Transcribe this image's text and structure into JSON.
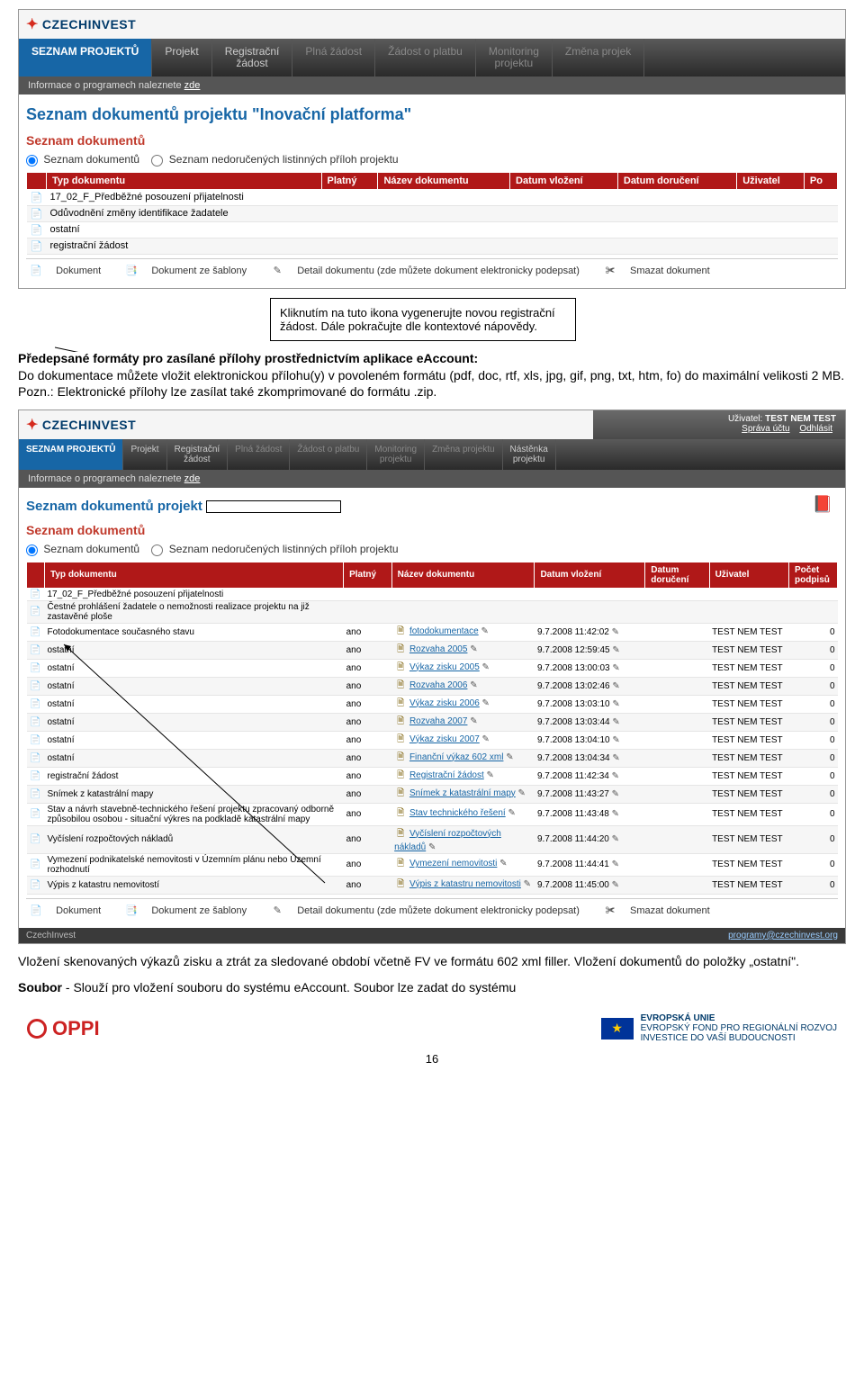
{
  "logo": "CZECHINVEST",
  "nav1": {
    "items": [
      "SEZNAM PROJEKTŮ",
      "Projekt",
      "Registrační\nžádost",
      "Plná žádost",
      "Žádost o platbu",
      "Monitoring\nprojektu",
      "Změna projek"
    ],
    "subnav_prefix": "Informace o programech naleznete ",
    "subnav_link": "zde"
  },
  "content1": {
    "title": "Seznam dokumentů projektu  \"Inovační platforma\"",
    "section": "Seznam dokumentů",
    "radio1": "Seznam dokumentů",
    "radio2": "Seznam nedoručených listinných příloh projektu",
    "columns": [
      "Typ dokumentu",
      "Platný",
      "Název dokumentu",
      "Datum vložení",
      "Datum doručení",
      "Uživatel",
      "Po"
    ],
    "rows": [
      {
        "type": "17_02_F_Předběžné posouzení přijatelnosti"
      },
      {
        "type": "Odůvodnění změny identifikace žadatele"
      },
      {
        "type": "ostatní"
      },
      {
        "type": "registrační žádost"
      }
    ],
    "actions": {
      "a1": "Dokument",
      "a2": "Dokument ze šablony",
      "a3": "Detail dokumentu (zde můžete dokument elektronicky podepsat)",
      "a4": "Smazat dokument"
    }
  },
  "callout": "Kliknutím na tuto ikona vygenerujte novou registrační žádost. Dále pokračujte dle kontextové nápovědy.",
  "para1_prefix": "Předepsané formáty pro zasílané přílohy prostřednictvím aplikace eAccount:",
  "para1_body": "Do dokumentace můžete vložit elektronickou přílohu(y) v povoleném formátu (pdf, doc, rtf, xls, jpg, gif, png, txt, htm, fo) do maximální velikosti 2 MB.",
  "para1_note": "Pozn.: Elektronické přílohy lze zasílat také zkomprimované do formátu .zip.",
  "user": {
    "label": "Uživatel:",
    "name": "TEST NEM TEST",
    "acct": "Správa účtu",
    "logout": "Odhlásit"
  },
  "nav2": {
    "items": [
      "SEZNAM PROJEKTŮ",
      "Projekt",
      "Registrační\nžádost",
      "Plná žádost",
      "Žádost o platbu",
      "Monitoring\nprojektu",
      "Změna projektu",
      "Nástěnka\nprojektu"
    ]
  },
  "content2": {
    "title": "Seznam dokumentů projekt",
    "section": "Seznam dokumentů",
    "radio1": "Seznam dokumentů",
    "radio2": "Seznam nedoručených listinných příloh projektu",
    "columns": [
      "Typ dokumentu",
      "Platný",
      "Název dokumentu",
      "Datum vložení",
      "Datum doručení",
      "Uživatel",
      "Počet podpisů"
    ],
    "rows": [
      {
        "type": "17_02_F_Předběžné posouzení přijatelnosti",
        "platny": "",
        "name": "",
        "date": "",
        "user": "",
        "cnt": ""
      },
      {
        "type": "Čestné prohlášení žadatele o nemožnosti realizace projektu na již zastavěné ploše",
        "platny": "",
        "name": "",
        "date": "",
        "user": "",
        "cnt": ""
      },
      {
        "type": "Fotodokumentace současného stavu",
        "platny": "ano",
        "name": "fotodokumentace",
        "date": "9.7.2008 11:42:02",
        "user": "TEST NEM TEST",
        "cnt": "0"
      },
      {
        "type": "ostatní",
        "platny": "ano",
        "name": "Rozvaha 2005",
        "date": "9.7.2008 12:59:45",
        "user": "TEST NEM TEST",
        "cnt": "0"
      },
      {
        "type": "ostatní",
        "platny": "ano",
        "name": "Výkaz zisku 2005",
        "date": "9.7.2008 13:00:03",
        "user": "TEST NEM TEST",
        "cnt": "0"
      },
      {
        "type": "ostatní",
        "platny": "ano",
        "name": "Rozvaha 2006",
        "date": "9.7.2008 13:02:46",
        "user": "TEST NEM TEST",
        "cnt": "0"
      },
      {
        "type": "ostatní",
        "platny": "ano",
        "name": "Výkaz zisku 2006",
        "date": "9.7.2008 13:03:10",
        "user": "TEST NEM TEST",
        "cnt": "0"
      },
      {
        "type": "ostatní",
        "platny": "ano",
        "name": "Rozvaha 2007",
        "date": "9.7.2008 13:03:44",
        "user": "TEST NEM TEST",
        "cnt": "0"
      },
      {
        "type": "ostatní",
        "platny": "ano",
        "name": "Výkaz zisku 2007",
        "date": "9.7.2008 13:04:10",
        "user": "TEST NEM TEST",
        "cnt": "0"
      },
      {
        "type": "ostatní",
        "platny": "ano",
        "name": "Finanční výkaz 602 xml",
        "date": "9.7.2008 13:04:34",
        "user": "TEST NEM TEST",
        "cnt": "0"
      },
      {
        "type": "registrační žádost",
        "platny": "ano",
        "name": "Registrační žádost",
        "date": "9.7.2008 11:42:34",
        "user": "TEST NEM TEST",
        "cnt": "0"
      },
      {
        "type": "Snímek z katastrální mapy",
        "platny": "ano",
        "name": "Snímek z katastrální mapy",
        "date": "9.7.2008 11:43:27",
        "user": "TEST NEM TEST",
        "cnt": "0"
      },
      {
        "type": "Stav a návrh stavebně-technického řešení projektu zpracovaný odborně způsobilou osobou - situační výkres na podkladě katastrální mapy",
        "platny": "ano",
        "name": "Stav technického řešení",
        "date": "9.7.2008 11:43:48",
        "user": "TEST NEM TEST",
        "cnt": "0"
      },
      {
        "type": "Vyčíslení rozpočtových nákladů",
        "platny": "ano",
        "name": "Vyčíslení rozpočtových nákladů",
        "date": "9.7.2008 11:44:20",
        "user": "TEST NEM TEST",
        "cnt": "0"
      },
      {
        "type": "Vymezení podnikatelské nemovitosti v Územním plánu nebo Územní rozhodnutí",
        "platny": "ano",
        "name": "Vymezení nemovitosti",
        "date": "9.7.2008 11:44:41",
        "user": "TEST NEM TEST",
        "cnt": "0"
      },
      {
        "type": "Výpis z katastru nemovitostí",
        "platny": "ano",
        "name": "Výpis z katastru nemovitosti",
        "date": "9.7.2008 11:45:00",
        "user": "TEST NEM TEST",
        "cnt": "0"
      }
    ],
    "actions": {
      "a1": "Dokument",
      "a2": "Dokument ze šablony",
      "a3": "Detail dokumentu (zde můžete dokument elektronicky podepsat)",
      "a4": "Smazat dokument"
    },
    "footerL": "CzechInvest",
    "footerR": "programy@czechinvest.org"
  },
  "para2": "Vložení skenovaných výkazů zisku a ztrát za sledované období včetně FV ve formátu 602 xml filler. Vložení dokumentů do položky „ostatní\".",
  "para3_prefix": "Soubor",
  "para3_body": " - Slouží pro vložení souboru do systému eAccount. Soubor lze zadat do systému",
  "page_num": "16",
  "footer": {
    "oppi": "OPPI",
    "eu_l1": "EVROPSKÁ UNIE",
    "eu_l2": "EVROPSKÝ FOND PRO REGIONÁLNÍ ROZVOJ",
    "eu_l3": "INVESTICE DO VAŠÍ BUDOUCNOSTI"
  }
}
